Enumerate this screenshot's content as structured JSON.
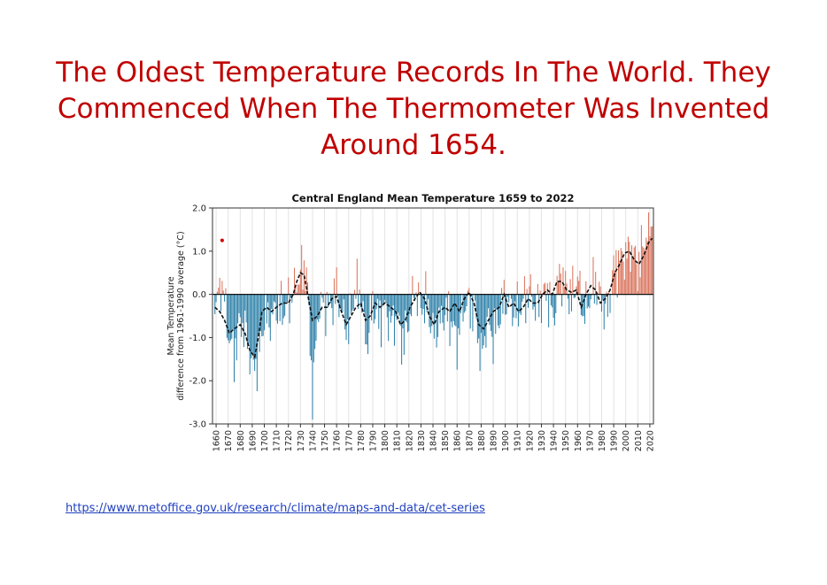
{
  "slide": {
    "title_lines": [
      "The Oldest Temperature Records In The World. They",
      "Commenced When The Thermometer Was Invented",
      "Around 1654."
    ],
    "link_text": "https://www.metoffice.gov.uk/research/climate/maps-and-data/cet-series"
  },
  "colors": {
    "title": "#c00000",
    "warm": "#d9725a",
    "cool": "#2b7fa8",
    "link": "#1f3fbf"
  },
  "chart_data": {
    "type": "bar",
    "title": "Central England Mean Temperature 1659 to 2022",
    "ylabel_lines": [
      "Mean Temperature",
      "difference from 1961-1990 average (°C)"
    ],
    "xlabel": "",
    "ylim": [
      -3.0,
      2.0
    ],
    "xlim": [
      1657,
      2023
    ],
    "yticks": [
      2.0,
      1.0,
      0.0,
      -1.0,
      -2.0,
      -3.0
    ],
    "ytick_labels": [
      "2.0",
      "1.0",
      "0.0",
      "-1.0",
      "-2.0",
      "-3.0"
    ],
    "xticks": [
      1660,
      1670,
      1680,
      1690,
      1700,
      1710,
      1720,
      1730,
      1740,
      1750,
      1760,
      1770,
      1780,
      1790,
      1800,
      1810,
      1820,
      1830,
      1840,
      1850,
      1860,
      1870,
      1880,
      1890,
      1900,
      1910,
      1920,
      1930,
      1940,
      1950,
      1960,
      1970,
      1980,
      1990,
      2000,
      2010,
      2020
    ],
    "grid": "vertical",
    "marker": {
      "x": 1665,
      "y": 1.25
    },
    "series": [
      {
        "name": "",
        "kind": "annual bars (warm positive / cool negative)",
        "anchors": [
          [
            1659,
            -0.3
          ],
          [
            1665,
            0.3
          ],
          [
            1670,
            -0.9
          ],
          [
            1675,
            -1.4
          ],
          [
            1680,
            -0.6
          ],
          [
            1685,
            -0.9
          ],
          [
            1690,
            -1.7
          ],
          [
            1695,
            -1.5
          ],
          [
            1700,
            -0.5
          ],
          [
            1705,
            -0.6
          ],
          [
            1710,
            -0.3
          ],
          [
            1715,
            -0.4
          ],
          [
            1720,
            -0.2
          ],
          [
            1725,
            0.1
          ],
          [
            1730,
            0.5
          ],
          [
            1735,
            0.6
          ],
          [
            1740,
            -2.3
          ],
          [
            1745,
            -0.3
          ],
          [
            1750,
            -0.2
          ],
          [
            1755,
            -0.3
          ],
          [
            1760,
            0.1
          ],
          [
            1765,
            -0.5
          ],
          [
            1770,
            -0.8
          ],
          [
            1775,
            0.1
          ],
          [
            1780,
            0.0
          ],
          [
            1785,
            -1.2
          ],
          [
            1790,
            -0.2
          ],
          [
            1795,
            -0.6
          ],
          [
            1800,
            -0.3
          ],
          [
            1805,
            -0.7
          ],
          [
            1810,
            -0.5
          ],
          [
            1815,
            -1.1
          ],
          [
            1820,
            -0.6
          ],
          [
            1825,
            0.1
          ],
          [
            1830,
            -0.3
          ],
          [
            1835,
            -0.2
          ],
          [
            1840,
            -0.9
          ],
          [
            1845,
            -0.7
          ],
          [
            1850,
            -0.4
          ],
          [
            1855,
            -0.6
          ],
          [
            1860,
            -1.1
          ],
          [
            1865,
            -0.3
          ],
          [
            1870,
            -0.2
          ],
          [
            1875,
            -0.4
          ],
          [
            1880,
            -1.5
          ],
          [
            1885,
            -0.6
          ],
          [
            1890,
            -1.0
          ],
          [
            1895,
            -0.5
          ],
          [
            1900,
            -0.1
          ],
          [
            1905,
            -0.3
          ],
          [
            1910,
            -0.4
          ],
          [
            1915,
            -0.2
          ],
          [
            1920,
            0.1
          ],
          [
            1925,
            -0.3
          ],
          [
            1930,
            -0.1
          ],
          [
            1935,
            0.1
          ],
          [
            1940,
            -0.6
          ],
          [
            1945,
            0.5
          ],
          [
            1950,
            0.2
          ],
          [
            1955,
            -0.1
          ],
          [
            1960,
            0.4
          ],
          [
            1965,
            -0.5
          ],
          [
            1970,
            -0.1
          ],
          [
            1975,
            0.3
          ],
          [
            1980,
            -0.2
          ],
          [
            1985,
            -0.4
          ],
          [
            1990,
            0.6
          ],
          [
            1995,
            0.8
          ],
          [
            2000,
            0.9
          ],
          [
            2005,
            1.1
          ],
          [
            2010,
            0.6
          ],
          [
            2015,
            1.2
          ],
          [
            2022,
            1.7
          ]
        ]
      },
      {
        "name": "",
        "kind": "smoothed (dashed)",
        "points": [
          [
            1659,
            -0.3
          ],
          [
            1663,
            -0.4
          ],
          [
            1667,
            -0.6
          ],
          [
            1671,
            -0.9
          ],
          [
            1675,
            -0.8
          ],
          [
            1680,
            -0.7
          ],
          [
            1684,
            -0.9
          ],
          [
            1688,
            -1.3
          ],
          [
            1692,
            -1.45
          ],
          [
            1695,
            -1.0
          ],
          [
            1698,
            -0.4
          ],
          [
            1702,
            -0.3
          ],
          [
            1706,
            -0.4
          ],
          [
            1710,
            -0.3
          ],
          [
            1715,
            -0.2
          ],
          [
            1720,
            -0.2
          ],
          [
            1724,
            0.0
          ],
          [
            1727,
            0.3
          ],
          [
            1730,
            0.5
          ],
          [
            1733,
            0.45
          ],
          [
            1736,
            0.0
          ],
          [
            1740,
            -0.6
          ],
          [
            1744,
            -0.5
          ],
          [
            1748,
            -0.3
          ],
          [
            1752,
            -0.3
          ],
          [
            1756,
            -0.1
          ],
          [
            1760,
            -0.05
          ],
          [
            1764,
            -0.4
          ],
          [
            1768,
            -0.7
          ],
          [
            1772,
            -0.5
          ],
          [
            1776,
            -0.3
          ],
          [
            1780,
            -0.2
          ],
          [
            1784,
            -0.6
          ],
          [
            1788,
            -0.5
          ],
          [
            1792,
            -0.2
          ],
          [
            1796,
            -0.3
          ],
          [
            1800,
            -0.2
          ],
          [
            1805,
            -0.3
          ],
          [
            1809,
            -0.4
          ],
          [
            1813,
            -0.7
          ],
          [
            1817,
            -0.6
          ],
          [
            1821,
            -0.3
          ],
          [
            1825,
            -0.1
          ],
          [
            1829,
            0.05
          ],
          [
            1833,
            -0.1
          ],
          [
            1837,
            -0.5
          ],
          [
            1841,
            -0.7
          ],
          [
            1845,
            -0.4
          ],
          [
            1850,
            -0.3
          ],
          [
            1854,
            -0.4
          ],
          [
            1858,
            -0.2
          ],
          [
            1862,
            -0.4
          ],
          [
            1866,
            -0.1
          ],
          [
            1870,
            0.05
          ],
          [
            1874,
            -0.2
          ],
          [
            1878,
            -0.7
          ],
          [
            1882,
            -0.8
          ],
          [
            1886,
            -0.6
          ],
          [
            1890,
            -0.4
          ],
          [
            1895,
            -0.3
          ],
          [
            1899,
            0.0
          ],
          [
            1903,
            -0.3
          ],
          [
            1907,
            -0.2
          ],
          [
            1911,
            -0.4
          ],
          [
            1915,
            -0.3
          ],
          [
            1919,
            -0.1
          ],
          [
            1923,
            -0.2
          ],
          [
            1927,
            -0.2
          ],
          [
            1931,
            0.0
          ],
          [
            1935,
            0.1
          ],
          [
            1939,
            0.0
          ],
          [
            1943,
            0.3
          ],
          [
            1947,
            0.3
          ],
          [
            1951,
            0.1
          ],
          [
            1955,
            0.05
          ],
          [
            1959,
            0.1
          ],
          [
            1963,
            -0.3
          ],
          [
            1967,
            0.0
          ],
          [
            1971,
            0.2
          ],
          [
            1975,
            0.1
          ],
          [
            1979,
            -0.2
          ],
          [
            1983,
            -0.1
          ],
          [
            1987,
            0.1
          ],
          [
            1991,
            0.5
          ],
          [
            1995,
            0.7
          ],
          [
            1999,
            0.95
          ],
          [
            2003,
            1.0
          ],
          [
            2007,
            0.8
          ],
          [
            2011,
            0.7
          ],
          [
            2015,
            0.9
          ],
          [
            2019,
            1.2
          ],
          [
            2022,
            1.3
          ]
        ]
      }
    ]
  }
}
